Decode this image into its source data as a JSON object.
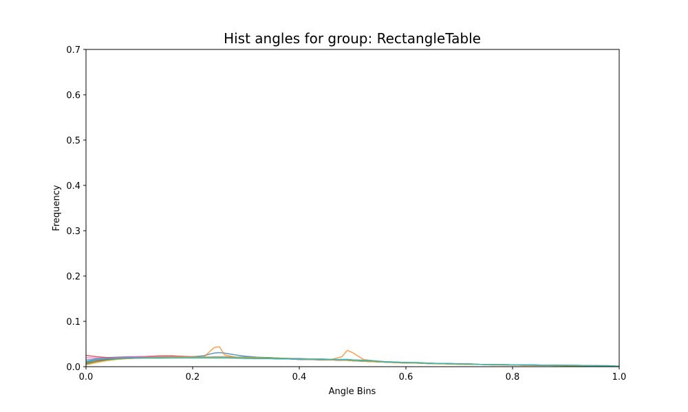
{
  "chart_data": {
    "type": "line",
    "title": "Hist angles for group: RectangleTable",
    "xlabel": "Angle Bins",
    "ylabel": "Frequency",
    "xlim": [
      0,
      1
    ],
    "ylim": [
      0,
      0.7
    ],
    "xticks": [
      0.0,
      0.2,
      0.4,
      0.6,
      0.8,
      1.0
    ],
    "xtick_labels": [
      "0.0",
      "0.2",
      "0.4",
      "0.6",
      "0.8",
      "1.0"
    ],
    "yticks": [
      0.0,
      0.1,
      0.2,
      0.3,
      0.4,
      0.5,
      0.6,
      0.7
    ],
    "ytick_labels": [
      "0.0",
      "0.1",
      "0.2",
      "0.3",
      "0.4",
      "0.5",
      "0.6",
      "0.7"
    ],
    "grid": false,
    "legend": "none",
    "x": [
      0.0,
      0.02,
      0.04,
      0.06,
      0.08,
      0.1,
      0.12,
      0.14,
      0.16,
      0.18,
      0.2,
      0.22,
      0.24,
      0.25,
      0.26,
      0.28,
      0.3,
      0.32,
      0.34,
      0.36,
      0.38,
      0.4,
      0.42,
      0.44,
      0.46,
      0.48,
      0.49,
      0.5,
      0.52,
      0.54,
      0.56,
      0.58,
      0.6,
      0.62,
      0.64,
      0.66,
      0.68,
      0.7,
      0.72,
      0.74,
      0.76,
      0.78,
      0.8,
      0.82,
      0.84,
      0.86,
      0.88,
      0.9,
      0.92,
      0.94,
      0.96,
      0.98,
      1.0
    ],
    "series": [
      {
        "color": "#1f77b4",
        "values": [
          0.01,
          0.018,
          0.02,
          0.021,
          0.022,
          0.022,
          0.021,
          0.021,
          0.02,
          0.021,
          0.022,
          0.024,
          0.03,
          0.031,
          0.03,
          0.026,
          0.023,
          0.021,
          0.02,
          0.019,
          0.018,
          0.018,
          0.017,
          0.017,
          0.016,
          0.016,
          0.016,
          0.015,
          0.014,
          0.012,
          0.011,
          0.01,
          0.009,
          0.009,
          0.008,
          0.007,
          0.007,
          0.006,
          0.006,
          0.005,
          0.005,
          0.005,
          0.004,
          0.004,
          0.004,
          0.003,
          0.003,
          0.003,
          0.003,
          0.002,
          0.002,
          0.002,
          0.001
        ]
      },
      {
        "color": "#ff7f0e",
        "values": [
          0.005,
          0.01,
          0.016,
          0.019,
          0.02,
          0.021,
          0.022,
          0.022,
          0.021,
          0.021,
          0.02,
          0.02,
          0.042,
          0.044,
          0.026,
          0.021,
          0.02,
          0.02,
          0.019,
          0.018,
          0.018,
          0.017,
          0.017,
          0.016,
          0.016,
          0.022,
          0.036,
          0.031,
          0.016,
          0.013,
          0.011,
          0.01,
          0.009,
          0.008,
          0.008,
          0.007,
          0.006,
          0.006,
          0.005,
          0.005,
          0.005,
          0.004,
          0.004,
          0.004,
          0.003,
          0.003,
          0.003,
          0.003,
          0.002,
          0.002,
          0.002,
          0.002,
          0.001
        ]
      },
      {
        "color": "#2ca02c",
        "values": [
          0.008,
          0.014,
          0.017,
          0.018,
          0.019,
          0.019,
          0.02,
          0.02,
          0.02,
          0.02,
          0.02,
          0.02,
          0.021,
          0.021,
          0.021,
          0.021,
          0.021,
          0.02,
          0.02,
          0.019,
          0.018,
          0.017,
          0.016,
          0.015,
          0.015,
          0.014,
          0.014,
          0.013,
          0.012,
          0.011,
          0.01,
          0.009,
          0.008,
          0.008,
          0.007,
          0.007,
          0.006,
          0.006,
          0.005,
          0.005,
          0.005,
          0.004,
          0.004,
          0.004,
          0.003,
          0.003,
          0.003,
          0.003,
          0.002,
          0.002,
          0.002,
          0.001,
          0.001
        ]
      },
      {
        "color": "#d62728",
        "values": [
          0.025,
          0.022,
          0.02,
          0.02,
          0.021,
          0.022,
          0.023,
          0.024,
          0.024,
          0.023,
          0.022,
          0.021,
          0.02,
          0.02,
          0.02,
          0.019,
          0.019,
          0.018,
          0.018,
          0.017,
          0.017,
          0.016,
          0.016,
          0.015,
          0.015,
          0.014,
          0.014,
          0.013,
          0.012,
          0.011,
          0.01,
          0.009,
          0.008,
          0.008,
          0.007,
          0.007,
          0.006,
          0.006,
          0.005,
          0.005,
          0.004,
          0.004,
          0.004,
          0.003,
          0.003,
          0.003,
          0.003,
          0.002,
          0.002,
          0.002,
          0.002,
          0.001,
          0.001
        ]
      },
      {
        "color": "#9467bd",
        "values": [
          0.015,
          0.017,
          0.018,
          0.019,
          0.02,
          0.021,
          0.021,
          0.022,
          0.022,
          0.021,
          0.021,
          0.021,
          0.022,
          0.022,
          0.022,
          0.021,
          0.021,
          0.02,
          0.019,
          0.018,
          0.017,
          0.017,
          0.016,
          0.016,
          0.015,
          0.015,
          0.015,
          0.014,
          0.013,
          0.012,
          0.011,
          0.01,
          0.009,
          0.008,
          0.008,
          0.007,
          0.007,
          0.006,
          0.006,
          0.005,
          0.005,
          0.004,
          0.004,
          0.004,
          0.003,
          0.003,
          0.003,
          0.002,
          0.002,
          0.002,
          0.002,
          0.001,
          0.001
        ]
      },
      {
        "color": "#8c564b",
        "values": [
          0.006,
          0.012,
          0.015,
          0.017,
          0.018,
          0.019,
          0.02,
          0.02,
          0.021,
          0.021,
          0.021,
          0.02,
          0.02,
          0.02,
          0.02,
          0.02,
          0.019,
          0.019,
          0.018,
          0.018,
          0.017,
          0.016,
          0.016,
          0.015,
          0.015,
          0.014,
          0.014,
          0.013,
          0.012,
          0.011,
          0.01,
          0.009,
          0.009,
          0.008,
          0.007,
          0.007,
          0.006,
          0.006,
          0.005,
          0.005,
          0.004,
          0.004,
          0.004,
          0.003,
          0.003,
          0.003,
          0.003,
          0.002,
          0.002,
          0.002,
          0.002,
          0.001,
          0.001
        ]
      },
      {
        "color": "#e377c2",
        "values": [
          0.02,
          0.019,
          0.019,
          0.02,
          0.021,
          0.022,
          0.022,
          0.023,
          0.022,
          0.022,
          0.021,
          0.021,
          0.021,
          0.021,
          0.02,
          0.02,
          0.02,
          0.019,
          0.018,
          0.018,
          0.017,
          0.016,
          0.016,
          0.015,
          0.015,
          0.014,
          0.014,
          0.013,
          0.012,
          0.011,
          0.01,
          0.009,
          0.008,
          0.008,
          0.007,
          0.007,
          0.006,
          0.006,
          0.005,
          0.005,
          0.004,
          0.004,
          0.004,
          0.003,
          0.003,
          0.003,
          0.003,
          0.002,
          0.002,
          0.002,
          0.001,
          0.001,
          0.001
        ]
      },
      {
        "color": "#7f7f7f",
        "values": [
          0.01,
          0.014,
          0.016,
          0.017,
          0.018,
          0.019,
          0.019,
          0.019,
          0.02,
          0.02,
          0.02,
          0.02,
          0.02,
          0.02,
          0.02,
          0.02,
          0.019,
          0.019,
          0.018,
          0.018,
          0.017,
          0.017,
          0.016,
          0.016,
          0.015,
          0.015,
          0.015,
          0.014,
          0.013,
          0.012,
          0.011,
          0.01,
          0.009,
          0.008,
          0.008,
          0.007,
          0.007,
          0.006,
          0.006,
          0.005,
          0.005,
          0.005,
          0.004,
          0.004,
          0.004,
          0.003,
          0.003,
          0.003,
          0.002,
          0.002,
          0.002,
          0.002,
          0.001
        ]
      },
      {
        "color": "#bcbd22",
        "values": [
          0.004,
          0.009,
          0.013,
          0.016,
          0.018,
          0.019,
          0.02,
          0.021,
          0.021,
          0.021,
          0.021,
          0.021,
          0.021,
          0.021,
          0.021,
          0.021,
          0.02,
          0.02,
          0.019,
          0.018,
          0.017,
          0.017,
          0.016,
          0.016,
          0.015,
          0.015,
          0.014,
          0.013,
          0.012,
          0.011,
          0.01,
          0.009,
          0.008,
          0.008,
          0.007,
          0.006,
          0.006,
          0.005,
          0.005,
          0.005,
          0.004,
          0.004,
          0.004,
          0.003,
          0.003,
          0.003,
          0.002,
          0.002,
          0.002,
          0.002,
          0.001,
          0.001,
          0.001
        ]
      },
      {
        "color": "#17becf",
        "values": [
          0.012,
          0.016,
          0.018,
          0.018,
          0.019,
          0.019,
          0.019,
          0.019,
          0.019,
          0.019,
          0.019,
          0.019,
          0.019,
          0.019,
          0.019,
          0.019,
          0.018,
          0.018,
          0.018,
          0.017,
          0.017,
          0.017,
          0.017,
          0.017,
          0.016,
          0.016,
          0.016,
          0.015,
          0.014,
          0.013,
          0.011,
          0.01,
          0.009,
          0.009,
          0.008,
          0.007,
          0.007,
          0.006,
          0.006,
          0.005,
          0.005,
          0.005,
          0.004,
          0.004,
          0.004,
          0.003,
          0.003,
          0.003,
          0.003,
          0.002,
          0.002,
          0.002,
          0.001
        ]
      }
    ]
  }
}
